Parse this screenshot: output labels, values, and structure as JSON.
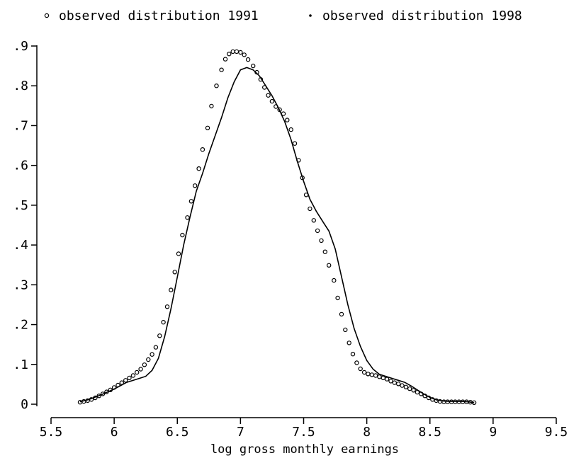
{
  "chart_data": {
    "type": "line",
    "xlabel": "log gross monthly earnings",
    "ylabel": "",
    "xlim": [
      5.5,
      9.5
    ],
    "ylim": [
      0,
      0.9
    ],
    "x_ticks": [
      5.5,
      6,
      6.5,
      7,
      7.5,
      8,
      8.5,
      9,
      9.5
    ],
    "x_tick_labels": [
      "5.5",
      "6",
      "6.5",
      "7",
      "7.5",
      "8",
      "8.5",
      "9",
      "9.5"
    ],
    "y_ticks": [
      0,
      0.1,
      0.2,
      0.3,
      0.4,
      0.5,
      0.6,
      0.7,
      0.8,
      0.9
    ],
    "y_tick_labels": [
      "0",
      ".1",
      ".2",
      ".3",
      ".4",
      ".5",
      ".6",
      ".7",
      ".8",
      ".9"
    ],
    "grid": false,
    "legend_position": "top",
    "series": [
      {
        "name": "observed distribution 1991",
        "marker": "hollow-circle",
        "color": "#000000",
        "points": [
          [
            5.73,
            0.005
          ],
          [
            5.76,
            0.007
          ],
          [
            5.79,
            0.009
          ],
          [
            5.82,
            0.012
          ],
          [
            5.85,
            0.016
          ],
          [
            5.88,
            0.021
          ],
          [
            5.91,
            0.026
          ],
          [
            5.94,
            0.031
          ],
          [
            5.97,
            0.036
          ],
          [
            6.0,
            0.042
          ],
          [
            6.03,
            0.048
          ],
          [
            6.06,
            0.054
          ],
          [
            6.09,
            0.06
          ],
          [
            6.12,
            0.066
          ],
          [
            6.15,
            0.072
          ],
          [
            6.18,
            0.08
          ],
          [
            6.21,
            0.088
          ],
          [
            6.24,
            0.099
          ],
          [
            6.27,
            0.112
          ],
          [
            6.3,
            0.125
          ],
          [
            6.33,
            0.143
          ],
          [
            6.36,
            0.172
          ],
          [
            6.39,
            0.206
          ],
          [
            6.42,
            0.245
          ],
          [
            6.45,
            0.287
          ],
          [
            6.48,
            0.332
          ],
          [
            6.51,
            0.378
          ],
          [
            6.54,
            0.425
          ],
          [
            6.58,
            0.469
          ],
          [
            6.61,
            0.51
          ],
          [
            6.64,
            0.549
          ],
          [
            6.67,
            0.592
          ],
          [
            6.7,
            0.64
          ],
          [
            6.74,
            0.694
          ],
          [
            6.77,
            0.749
          ],
          [
            6.81,
            0.8
          ],
          [
            6.85,
            0.84
          ],
          [
            6.88,
            0.867
          ],
          [
            6.91,
            0.88
          ],
          [
            6.94,
            0.886
          ],
          [
            6.97,
            0.886
          ],
          [
            7.0,
            0.884
          ],
          [
            7.03,
            0.878
          ],
          [
            7.06,
            0.866
          ],
          [
            7.1,
            0.85
          ],
          [
            7.13,
            0.834
          ],
          [
            7.16,
            0.816
          ],
          [
            7.19,
            0.796
          ],
          [
            7.22,
            0.776
          ],
          [
            7.25,
            0.761
          ],
          [
            7.28,
            0.748
          ],
          [
            7.31,
            0.74
          ],
          [
            7.34,
            0.73
          ],
          [
            7.37,
            0.714
          ],
          [
            7.4,
            0.69
          ],
          [
            7.43,
            0.655
          ],
          [
            7.46,
            0.613
          ],
          [
            7.49,
            0.569
          ],
          [
            7.52,
            0.526
          ],
          [
            7.55,
            0.491
          ],
          [
            7.58,
            0.462
          ],
          [
            7.61,
            0.436
          ],
          [
            7.64,
            0.411
          ],
          [
            7.67,
            0.383
          ],
          [
            7.7,
            0.349
          ],
          [
            7.74,
            0.311
          ],
          [
            7.77,
            0.267
          ],
          [
            7.8,
            0.226
          ],
          [
            7.83,
            0.187
          ],
          [
            7.86,
            0.154
          ],
          [
            7.89,
            0.126
          ],
          [
            7.92,
            0.104
          ],
          [
            7.95,
            0.089
          ],
          [
            7.98,
            0.08
          ],
          [
            8.01,
            0.076
          ],
          [
            8.04,
            0.074
          ],
          [
            8.07,
            0.072
          ],
          [
            8.1,
            0.069
          ],
          [
            8.13,
            0.066
          ],
          [
            8.16,
            0.063
          ],
          [
            8.19,
            0.058
          ],
          [
            8.22,
            0.054
          ],
          [
            8.25,
            0.051
          ],
          [
            8.28,
            0.047
          ],
          [
            8.31,
            0.043
          ],
          [
            8.34,
            0.039
          ],
          [
            8.37,
            0.035
          ],
          [
            8.4,
            0.03
          ],
          [
            8.43,
            0.026
          ],
          [
            8.46,
            0.021
          ],
          [
            8.49,
            0.016
          ],
          [
            8.52,
            0.012
          ],
          [
            8.55,
            0.009
          ],
          [
            8.58,
            0.007
          ],
          [
            8.61,
            0.006
          ],
          [
            8.64,
            0.006
          ],
          [
            8.67,
            0.006
          ],
          [
            8.7,
            0.006
          ],
          [
            8.73,
            0.006
          ],
          [
            8.76,
            0.006
          ],
          [
            8.79,
            0.006
          ],
          [
            8.82,
            0.005
          ],
          [
            8.85,
            0.004
          ]
        ]
      },
      {
        "name": "observed distribution 1998",
        "marker": "line",
        "color": "#000000",
        "points": [
          [
            5.73,
            0.006
          ],
          [
            5.8,
            0.012
          ],
          [
            5.9,
            0.024
          ],
          [
            6.0,
            0.038
          ],
          [
            6.1,
            0.055
          ],
          [
            6.2,
            0.065
          ],
          [
            6.25,
            0.07
          ],
          [
            6.3,
            0.085
          ],
          [
            6.35,
            0.115
          ],
          [
            6.4,
            0.17
          ],
          [
            6.45,
            0.24
          ],
          [
            6.5,
            0.32
          ],
          [
            6.55,
            0.4
          ],
          [
            6.6,
            0.47
          ],
          [
            6.65,
            0.535
          ],
          [
            6.7,
            0.58
          ],
          [
            6.75,
            0.63
          ],
          [
            6.8,
            0.675
          ],
          [
            6.85,
            0.72
          ],
          [
            6.9,
            0.77
          ],
          [
            6.95,
            0.81
          ],
          [
            7.0,
            0.84
          ],
          [
            7.05,
            0.846
          ],
          [
            7.1,
            0.84
          ],
          [
            7.15,
            0.825
          ],
          [
            7.2,
            0.8
          ],
          [
            7.25,
            0.775
          ],
          [
            7.3,
            0.745
          ],
          [
            7.35,
            0.71
          ],
          [
            7.4,
            0.665
          ],
          [
            7.45,
            0.61
          ],
          [
            7.5,
            0.56
          ],
          [
            7.55,
            0.515
          ],
          [
            7.6,
            0.485
          ],
          [
            7.65,
            0.46
          ],
          [
            7.7,
            0.435
          ],
          [
            7.75,
            0.39
          ],
          [
            7.8,
            0.32
          ],
          [
            7.85,
            0.25
          ],
          [
            7.9,
            0.19
          ],
          [
            7.95,
            0.145
          ],
          [
            8.0,
            0.11
          ],
          [
            8.05,
            0.088
          ],
          [
            8.1,
            0.075
          ],
          [
            8.15,
            0.07
          ],
          [
            8.2,
            0.065
          ],
          [
            8.25,
            0.06
          ],
          [
            8.3,
            0.055
          ],
          [
            8.35,
            0.046
          ],
          [
            8.4,
            0.036
          ],
          [
            8.45,
            0.026
          ],
          [
            8.5,
            0.017
          ],
          [
            8.55,
            0.011
          ],
          [
            8.6,
            0.008
          ],
          [
            8.65,
            0.007
          ],
          [
            8.7,
            0.007
          ],
          [
            8.75,
            0.007
          ],
          [
            8.8,
            0.006
          ],
          [
            8.85,
            0.004
          ]
        ]
      }
    ]
  }
}
